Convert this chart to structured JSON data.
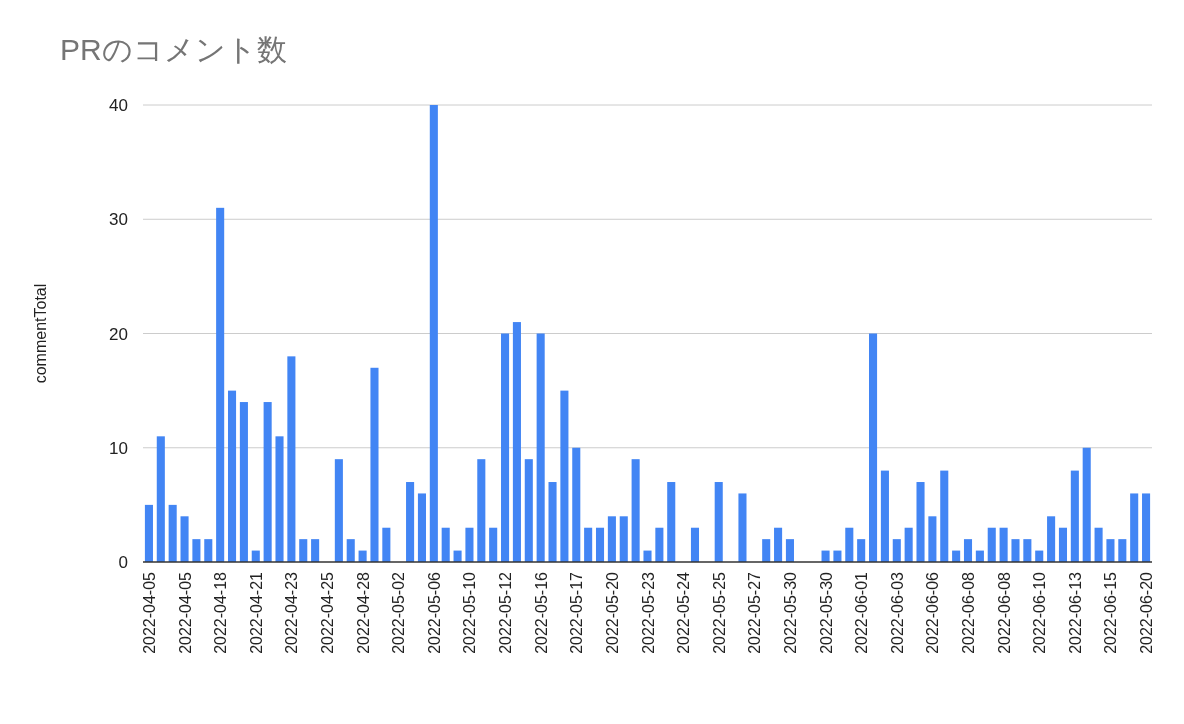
{
  "chart_data": {
    "type": "bar",
    "title": "PRのコメント数",
    "ylabel": "commentTotal",
    "categories": [
      "2022-04-05",
      null,
      null,
      "2022-04-05",
      null,
      null,
      "2022-04-18",
      null,
      null,
      "2022-04-21",
      null,
      null,
      "2022-04-23",
      null,
      null,
      "2022-04-25",
      null,
      null,
      "2022-04-28",
      null,
      null,
      "2022-05-02",
      null,
      null,
      "2022-05-06",
      null,
      null,
      "2022-05-10",
      null,
      null,
      "2022-05-12",
      null,
      null,
      "2022-05-16",
      null,
      null,
      "2022-05-17",
      null,
      null,
      "2022-05-20",
      null,
      null,
      "2022-05-23",
      null,
      null,
      "2022-05-24",
      null,
      null,
      "2022-05-25",
      null,
      null,
      "2022-05-27",
      null,
      null,
      "2022-05-30",
      null,
      null,
      "2022-05-30",
      null,
      null,
      "2022-06-01",
      null,
      null,
      "2022-06-03",
      null,
      null,
      "2022-06-06",
      null,
      null,
      "2022-06-08",
      null,
      null,
      "2022-06-08",
      null,
      null,
      "2022-06-10",
      null,
      null,
      "2022-06-13",
      null,
      null,
      "2022-06-15",
      null,
      null,
      "2022-06-20"
    ],
    "values": [
      5,
      11,
      5,
      4,
      2,
      2,
      31,
      15,
      14,
      1,
      14,
      11,
      18,
      2,
      2,
      0,
      9,
      2,
      1,
      17,
      3,
      0,
      7,
      6,
      40,
      3,
      1,
      3,
      9,
      3,
      20,
      21,
      9,
      20,
      7,
      15,
      10,
      3,
      3,
      4,
      4,
      9,
      1,
      3,
      7,
      0,
      3,
      0,
      7,
      0,
      6,
      0,
      2,
      3,
      2,
      0,
      0,
      1,
      1,
      3,
      2,
      20,
      8,
      2,
      3,
      7,
      4,
      8,
      1,
      2,
      1,
      3,
      3,
      2,
      2,
      1,
      4,
      3,
      8,
      10,
      3,
      2,
      2,
      6,
      6
    ],
    "color": "#4285f4",
    "ylim": [
      0,
      40
    ],
    "yticks": [
      0,
      10,
      20,
      30,
      40
    ],
    "grid": "y"
  }
}
